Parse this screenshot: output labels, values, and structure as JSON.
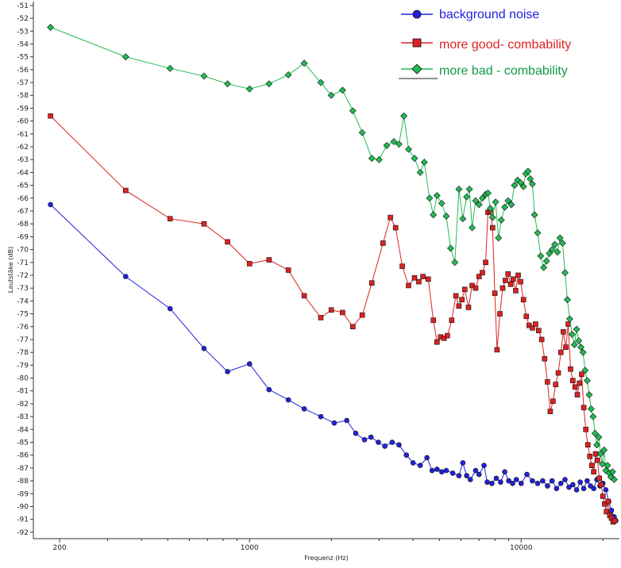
{
  "chart_data": {
    "type": "line",
    "xlabel": "Frequenz (Hz)",
    "ylabel": "Lautstäke (dB)",
    "x_scale": "log",
    "xlim": [
      160,
      23000
    ],
    "ylim": [
      -92.5,
      -50.7
    ],
    "x_ticks": [
      200,
      1000,
      10000
    ],
    "x_tick_labels": [
      "200",
      "1000",
      "10000"
    ],
    "y_ticks": [
      -51,
      -52,
      -53,
      -54,
      -55,
      -56,
      -57,
      -58,
      -59,
      -60,
      -61,
      -62,
      -63,
      -64,
      -65,
      -66,
      -67,
      -68,
      -69,
      -70,
      -71,
      -72,
      -73,
      -74,
      -75,
      -76,
      -77,
      -78,
      -79,
      -80,
      -81,
      -82,
      -83,
      -84,
      -85,
      -86,
      -87,
      -88,
      -89,
      -90,
      -91,
      -92
    ],
    "grid": false,
    "legend_position": "top-right",
    "series": [
      {
        "name": "background noise",
        "color": "#2222dd",
        "marker": "circle",
        "points": [
          [
            185,
            -66.5
          ],
          [
            350,
            -72.1
          ],
          [
            510,
            -74.6
          ],
          [
            680,
            -77.7
          ],
          [
            830,
            -79.5
          ],
          [
            1000,
            -78.9
          ],
          [
            1180,
            -80.9
          ],
          [
            1390,
            -81.7
          ],
          [
            1590,
            -82.4
          ],
          [
            1830,
            -83.0
          ],
          [
            2050,
            -83.5
          ],
          [
            2280,
            -83.3
          ],
          [
            2460,
            -84.3
          ],
          [
            2650,
            -84.8
          ],
          [
            2800,
            -84.6
          ],
          [
            2980,
            -85.0
          ],
          [
            3150,
            -85.3
          ],
          [
            3350,
            -85.0
          ],
          [
            3550,
            -85.2
          ],
          [
            3780,
            -86.0
          ],
          [
            4000,
            -86.6
          ],
          [
            4250,
            -86.8
          ],
          [
            4500,
            -86.2
          ],
          [
            4700,
            -87.2
          ],
          [
            4900,
            -87.1
          ],
          [
            5100,
            -87.3
          ],
          [
            5300,
            -87.2
          ],
          [
            5600,
            -87.4
          ],
          [
            5900,
            -87.6
          ],
          [
            6100,
            -86.6
          ],
          [
            6300,
            -87.6
          ],
          [
            6500,
            -87.9
          ],
          [
            6800,
            -87.2
          ],
          [
            7000,
            -87.5
          ],
          [
            7300,
            -86.8
          ],
          [
            7500,
            -88.1
          ],
          [
            7800,
            -88.2
          ],
          [
            8100,
            -87.8
          ],
          [
            8400,
            -88.1
          ],
          [
            8700,
            -87.3
          ],
          [
            9000,
            -88.0
          ],
          [
            9300,
            -88.2
          ],
          [
            9600,
            -87.9
          ],
          [
            10000,
            -88.2
          ],
          [
            10500,
            -87.5
          ],
          [
            11000,
            -88.0
          ],
          [
            11500,
            -88.2
          ],
          [
            12000,
            -88.0
          ],
          [
            12500,
            -88.4
          ],
          [
            13000,
            -88.0
          ],
          [
            13500,
            -88.6
          ],
          [
            14000,
            -88.2
          ],
          [
            14500,
            -87.9
          ],
          [
            15000,
            -88.5
          ],
          [
            15500,
            -88.3
          ],
          [
            16000,
            -88.7
          ],
          [
            16500,
            -88.1
          ],
          [
            17000,
            -88.6
          ],
          [
            17500,
            -88.0
          ],
          [
            18000,
            -88.4
          ],
          [
            18500,
            -88.6
          ],
          [
            19000,
            -87.9
          ],
          [
            19500,
            -88.4
          ],
          [
            20000,
            -88.2
          ],
          [
            20500,
            -88.7
          ],
          [
            21000,
            -89.6
          ],
          [
            21500,
            -90.3
          ],
          [
            22000,
            -90.8
          ],
          [
            22300,
            -91.1
          ]
        ]
      },
      {
        "name": "more good- combability",
        "color": "#dd2222",
        "marker": "square",
        "points": [
          [
            185,
            -59.6
          ],
          [
            350,
            -65.4
          ],
          [
            510,
            -67.6
          ],
          [
            680,
            -68.0
          ],
          [
            830,
            -69.4
          ],
          [
            1000,
            -71.1
          ],
          [
            1180,
            -70.8
          ],
          [
            1390,
            -71.6
          ],
          [
            1590,
            -73.6
          ],
          [
            1830,
            -75.3
          ],
          [
            2000,
            -74.7
          ],
          [
            2200,
            -74.9
          ],
          [
            2400,
            -76.0
          ],
          [
            2600,
            -75.1
          ],
          [
            2820,
            -72.6
          ],
          [
            3100,
            -69.5
          ],
          [
            3300,
            -67.5
          ],
          [
            3450,
            -68.3
          ],
          [
            3650,
            -71.3
          ],
          [
            3850,
            -72.8
          ],
          [
            4050,
            -72.2
          ],
          [
            4200,
            -72.5
          ],
          [
            4350,
            -72.1
          ],
          [
            4550,
            -72.3
          ],
          [
            4750,
            -75.5
          ],
          [
            4900,
            -77.2
          ],
          [
            5050,
            -76.8
          ],
          [
            5200,
            -76.9
          ],
          [
            5350,
            -76.7
          ],
          [
            5550,
            -75.5
          ],
          [
            5750,
            -73.6
          ],
          [
            5900,
            -74.4
          ],
          [
            6050,
            -73.9
          ],
          [
            6200,
            -73.1
          ],
          [
            6400,
            -74.5
          ],
          [
            6600,
            -72.8
          ],
          [
            6800,
            -73.0
          ],
          [
            7000,
            -72.1
          ],
          [
            7200,
            -71.8
          ],
          [
            7400,
            -71.0
          ],
          [
            7550,
            -67.1
          ],
          [
            7700,
            -67.0
          ],
          [
            7850,
            -68.3
          ],
          [
            8000,
            -73.4
          ],
          [
            8150,
            -77.8
          ],
          [
            8350,
            -75.0
          ],
          [
            8550,
            -73.0
          ],
          [
            8750,
            -72.4
          ],
          [
            8950,
            -71.9
          ],
          [
            9150,
            -72.7
          ],
          [
            9350,
            -72.3
          ],
          [
            9550,
            -73.2
          ],
          [
            9750,
            -72.0
          ],
          [
            9950,
            -72.5
          ],
          [
            10200,
            -73.9
          ],
          [
            10450,
            -75.2
          ],
          [
            10700,
            -75.9
          ],
          [
            11000,
            -76.1
          ],
          [
            11300,
            -75.8
          ],
          [
            11600,
            -76.3
          ],
          [
            11900,
            -77.0
          ],
          [
            12200,
            -78.5
          ],
          [
            12500,
            -80.3
          ],
          [
            12800,
            -82.6
          ],
          [
            13100,
            -81.8
          ],
          [
            13400,
            -80.5
          ],
          [
            13700,
            -79.6
          ],
          [
            14000,
            -78.0
          ],
          [
            14300,
            -76.4
          ],
          [
            14600,
            -77.6
          ],
          [
            14900,
            -75.8
          ],
          [
            15200,
            -79.3
          ],
          [
            15500,
            -80.2
          ],
          [
            15800,
            -80.7
          ],
          [
            16100,
            -81.3
          ],
          [
            16400,
            -80.4
          ],
          [
            16700,
            -79.7
          ],
          [
            17000,
            -82.3
          ],
          [
            17300,
            -84.0
          ],
          [
            17600,
            -85.2
          ],
          [
            17900,
            -86.1
          ],
          [
            18200,
            -86.8
          ],
          [
            18500,
            -87.3
          ],
          [
            18800,
            -85.9
          ],
          [
            19100,
            -86.4
          ],
          [
            19400,
            -87.8
          ],
          [
            19700,
            -88.3
          ],
          [
            20000,
            -89.2
          ],
          [
            20300,
            -89.8
          ],
          [
            20600,
            -90.4
          ],
          [
            20900,
            -89.6
          ],
          [
            21200,
            -90.7
          ],
          [
            21500,
            -90.9
          ],
          [
            21800,
            -91.2
          ],
          [
            22100,
            -91.1
          ]
        ]
      },
      {
        "name": "more  bad - combability",
        "color": "#22bb55",
        "marker": "diamond",
        "points": [
          [
            185,
            -52.7
          ],
          [
            350,
            -55.0
          ],
          [
            510,
            -55.9
          ],
          [
            680,
            -56.5
          ],
          [
            830,
            -57.1
          ],
          [
            1000,
            -57.5
          ],
          [
            1180,
            -57.1
          ],
          [
            1390,
            -56.4
          ],
          [
            1590,
            -55.5
          ],
          [
            1830,
            -57.0
          ],
          [
            2000,
            -58.0
          ],
          [
            2200,
            -57.6
          ],
          [
            2400,
            -59.2
          ],
          [
            2600,
            -60.9
          ],
          [
            2820,
            -62.9
          ],
          [
            3000,
            -63.0
          ],
          [
            3200,
            -61.9
          ],
          [
            3400,
            -61.6
          ],
          [
            3550,
            -61.8
          ],
          [
            3700,
            -59.6
          ],
          [
            3850,
            -62.2
          ],
          [
            4050,
            -62.9
          ],
          [
            4250,
            -64.0
          ],
          [
            4400,
            -63.2
          ],
          [
            4600,
            -66.0
          ],
          [
            4750,
            -67.3
          ],
          [
            4900,
            -65.8
          ],
          [
            5100,
            -66.4
          ],
          [
            5300,
            -67.4
          ],
          [
            5500,
            -69.9
          ],
          [
            5700,
            -71.0
          ],
          [
            5900,
            -65.3
          ],
          [
            6100,
            -67.6
          ],
          [
            6300,
            -65.9
          ],
          [
            6450,
            -65.3
          ],
          [
            6600,
            -68.3
          ],
          [
            6800,
            -66.2
          ],
          [
            7000,
            -66.5
          ],
          [
            7200,
            -66.0
          ],
          [
            7400,
            -65.7
          ],
          [
            7550,
            -65.6
          ],
          [
            7700,
            -66.8
          ],
          [
            7850,
            -67.5
          ],
          [
            8050,
            -66.3
          ],
          [
            8250,
            -69.1
          ],
          [
            8450,
            -67.7
          ],
          [
            8700,
            -66.7
          ],
          [
            8950,
            -66.2
          ],
          [
            9200,
            -66.5
          ],
          [
            9450,
            -65.0
          ],
          [
            9700,
            -64.6
          ],
          [
            9950,
            -64.8
          ],
          [
            10200,
            -65.1
          ],
          [
            10400,
            -64.1
          ],
          [
            10600,
            -63.9
          ],
          [
            10800,
            -64.5
          ],
          [
            11000,
            -64.9
          ],
          [
            11200,
            -67.3
          ],
          [
            11500,
            -68.7
          ],
          [
            11800,
            -70.5
          ],
          [
            12100,
            -71.4
          ],
          [
            12400,
            -70.9
          ],
          [
            12700,
            -70.3
          ],
          [
            13000,
            -70.0
          ],
          [
            13300,
            -69.6
          ],
          [
            13600,
            -70.2
          ],
          [
            13900,
            -69.1
          ],
          [
            14200,
            -69.5
          ],
          [
            14500,
            -71.8
          ],
          [
            14800,
            -73.9
          ],
          [
            15100,
            -75.4
          ],
          [
            15400,
            -76.6
          ],
          [
            15700,
            -77.4
          ],
          [
            16000,
            -76.2
          ],
          [
            16300,
            -77.1
          ],
          [
            16600,
            -77.6
          ],
          [
            16900,
            -78.0
          ],
          [
            17200,
            -79.4
          ],
          [
            17500,
            -80.2
          ],
          [
            17800,
            -81.3
          ],
          [
            18100,
            -82.4
          ],
          [
            18400,
            -83.0
          ],
          [
            18700,
            -84.3
          ],
          [
            19000,
            -85.2
          ],
          [
            19300,
            -84.6
          ],
          [
            19600,
            -85.9
          ],
          [
            19900,
            -86.7
          ],
          [
            20200,
            -85.6
          ],
          [
            20500,
            -87.2
          ],
          [
            20800,
            -86.8
          ],
          [
            21100,
            -87.4
          ],
          [
            21400,
            -87.7
          ],
          [
            21700,
            -87.3
          ],
          [
            22000,
            -87.9
          ]
        ]
      }
    ]
  }
}
